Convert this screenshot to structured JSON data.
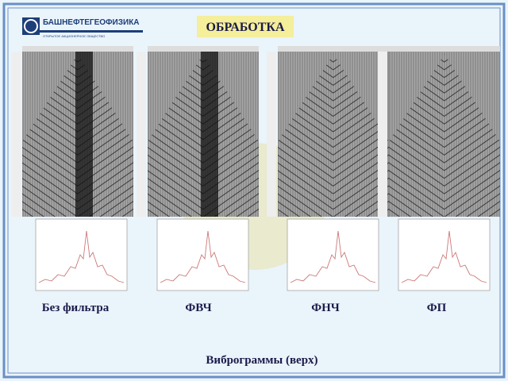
{
  "header": {
    "logo": "БАШНЕФТЕГЕОФИЗИКА",
    "logo_subtitle": "ОТКРЫТОЕ АКЦИОНЕРНОЕ ОБЩЕСТВО",
    "title": "ОБРАБОТКА"
  },
  "panels": [
    {
      "label": "Без фильтра"
    },
    {
      "label": "ФВЧ"
    },
    {
      "label": "ФНЧ"
    },
    {
      "label": "ФП"
    }
  ],
  "caption": "Виброграммы (верх)"
}
